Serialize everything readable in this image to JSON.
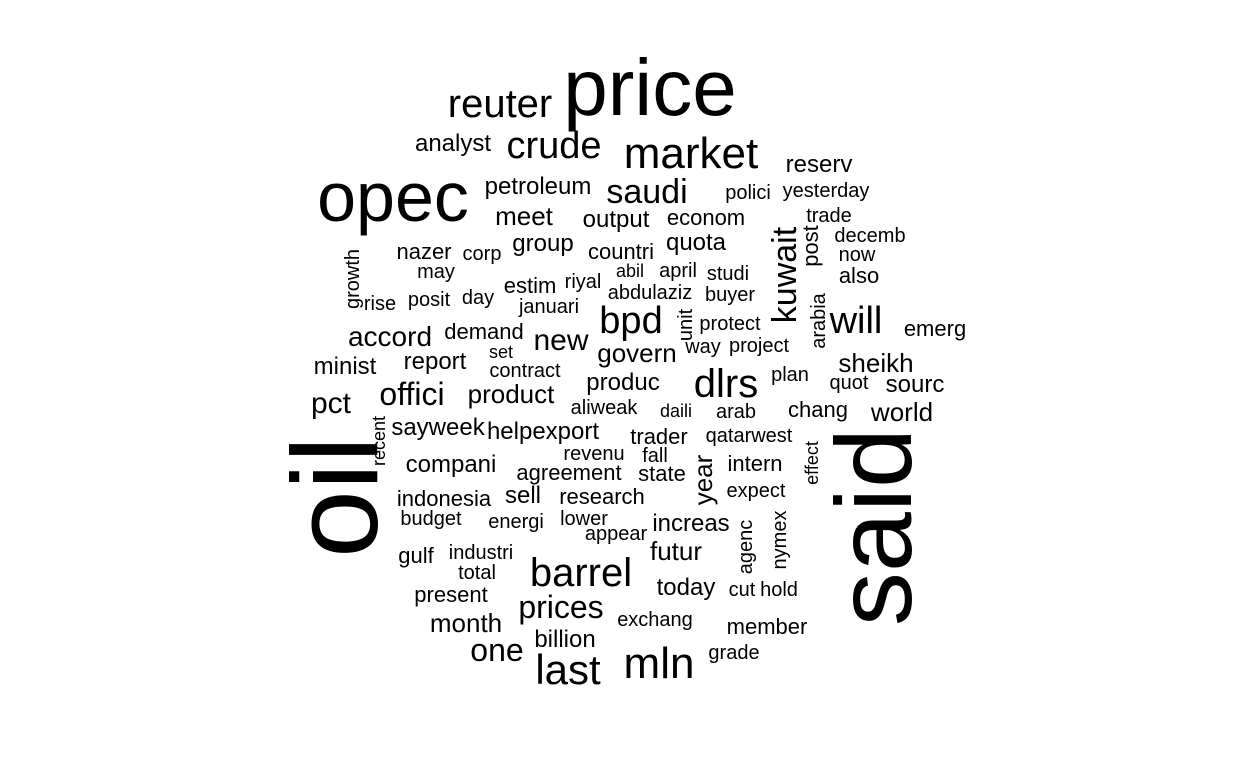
{
  "word_cloud": {
    "words": [
      {
        "text": "oil",
        "rotated": true
      },
      {
        "text": "said",
        "rotated": true
      },
      {
        "text": "price",
        "rotated": false
      },
      {
        "text": "opec",
        "rotated": false
      },
      {
        "text": "reuter",
        "rotated": false
      },
      {
        "text": "market",
        "rotated": false
      },
      {
        "text": "crude",
        "rotated": false
      },
      {
        "text": "analyst",
        "rotated": false
      },
      {
        "text": "petroleum",
        "rotated": false
      },
      {
        "text": "saudi",
        "rotated": false
      },
      {
        "text": "reserv",
        "rotated": false
      },
      {
        "text": "polici",
        "rotated": false
      },
      {
        "text": "yesterday",
        "rotated": false
      },
      {
        "text": "meet",
        "rotated": false
      },
      {
        "text": "output",
        "rotated": false
      },
      {
        "text": "econom",
        "rotated": false
      },
      {
        "text": "trade",
        "rotated": false
      },
      {
        "text": "decemb",
        "rotated": false
      },
      {
        "text": "now",
        "rotated": false
      },
      {
        "text": "also",
        "rotated": false
      },
      {
        "text": "kuwait",
        "rotated": true
      },
      {
        "text": "post",
        "rotated": true
      },
      {
        "text": "group",
        "rotated": false
      },
      {
        "text": "countri",
        "rotated": false
      },
      {
        "text": "quota",
        "rotated": false
      },
      {
        "text": "nazer",
        "rotated": false
      },
      {
        "text": "corp",
        "rotated": false
      },
      {
        "text": "growth",
        "rotated": true
      },
      {
        "text": "may",
        "rotated": false
      },
      {
        "text": "abil",
        "rotated": false
      },
      {
        "text": "april",
        "rotated": false
      },
      {
        "text": "studi",
        "rotated": false
      },
      {
        "text": "estim",
        "rotated": false
      },
      {
        "text": "riyal",
        "rotated": false
      },
      {
        "text": "abdulaziz",
        "rotated": false
      },
      {
        "text": "buyer",
        "rotated": false
      },
      {
        "text": "arabia",
        "rotated": true
      },
      {
        "text": "rise",
        "rotated": false
      },
      {
        "text": "posit",
        "rotated": false
      },
      {
        "text": "day",
        "rotated": false
      },
      {
        "text": "januari",
        "rotated": false
      },
      {
        "text": "bpd",
        "rotated": false
      },
      {
        "text": "unit",
        "rotated": true
      },
      {
        "text": "protect",
        "rotated": false
      },
      {
        "text": "will",
        "rotated": false
      },
      {
        "text": "emerg",
        "rotated": false
      },
      {
        "text": "accord",
        "rotated": false
      },
      {
        "text": "demand",
        "rotated": false
      },
      {
        "text": "new",
        "rotated": false
      },
      {
        "text": "way",
        "rotated": false
      },
      {
        "text": "project",
        "rotated": false
      },
      {
        "text": "minist",
        "rotated": false
      },
      {
        "text": "report",
        "rotated": false
      },
      {
        "text": "set",
        "rotated": false
      },
      {
        "text": "govern",
        "rotated": false
      },
      {
        "text": "sheikh",
        "rotated": false
      },
      {
        "text": "contract",
        "rotated": false
      },
      {
        "text": "dlrs",
        "rotated": false
      },
      {
        "text": "plan",
        "rotated": false
      },
      {
        "text": "offici",
        "rotated": false
      },
      {
        "text": "produc",
        "rotated": false
      },
      {
        "text": "quot",
        "rotated": false
      },
      {
        "text": "sourc",
        "rotated": false
      },
      {
        "text": "pct",
        "rotated": false
      },
      {
        "text": "product",
        "rotated": false
      },
      {
        "text": "aliweak",
        "rotated": false
      },
      {
        "text": "daili",
        "rotated": false
      },
      {
        "text": "arab",
        "rotated": false
      },
      {
        "text": "chang",
        "rotated": false
      },
      {
        "text": "world",
        "rotated": false
      },
      {
        "text": "recent",
        "rotated": true
      },
      {
        "text": "sayweek",
        "rotated": false
      },
      {
        "text": "helpexport",
        "rotated": false
      },
      {
        "text": "trader",
        "rotated": false
      },
      {
        "text": "qatarwest",
        "rotated": false
      },
      {
        "text": "effect",
        "rotated": true
      },
      {
        "text": "revenu",
        "rotated": false
      },
      {
        "text": "fall",
        "rotated": false
      },
      {
        "text": "compani",
        "rotated": false
      },
      {
        "text": "agreement",
        "rotated": false
      },
      {
        "text": "state",
        "rotated": false
      },
      {
        "text": "year",
        "rotated": true
      },
      {
        "text": "intern",
        "rotated": false
      },
      {
        "text": "indonesia",
        "rotated": false
      },
      {
        "text": "sell",
        "rotated": false
      },
      {
        "text": "research",
        "rotated": false
      },
      {
        "text": "expect",
        "rotated": false
      },
      {
        "text": "budget",
        "rotated": false
      },
      {
        "text": "energi",
        "rotated": false
      },
      {
        "text": "lower",
        "rotated": false
      },
      {
        "text": "increas",
        "rotated": false
      },
      {
        "text": "nymex",
        "rotated": true
      },
      {
        "text": "appear",
        "rotated": false
      },
      {
        "text": "agenc",
        "rotated": true
      },
      {
        "text": "gulf",
        "rotated": false
      },
      {
        "text": "industri",
        "rotated": false
      },
      {
        "text": "futur",
        "rotated": false
      },
      {
        "text": "barrel",
        "rotated": false
      },
      {
        "text": "total",
        "rotated": false
      },
      {
        "text": "today",
        "rotated": false
      },
      {
        "text": "cut",
        "rotated": false
      },
      {
        "text": "hold",
        "rotated": false
      },
      {
        "text": "present",
        "rotated": false
      },
      {
        "text": "prices",
        "rotated": false
      },
      {
        "text": "exchang",
        "rotated": false
      },
      {
        "text": "month",
        "rotated": false
      },
      {
        "text": "member",
        "rotated": false
      },
      {
        "text": "billion",
        "rotated": false
      },
      {
        "text": "one",
        "rotated": false
      },
      {
        "text": "grade",
        "rotated": false
      },
      {
        "text": "last",
        "rotated": false
      },
      {
        "text": "mln",
        "rotated": false
      }
    ]
  }
}
